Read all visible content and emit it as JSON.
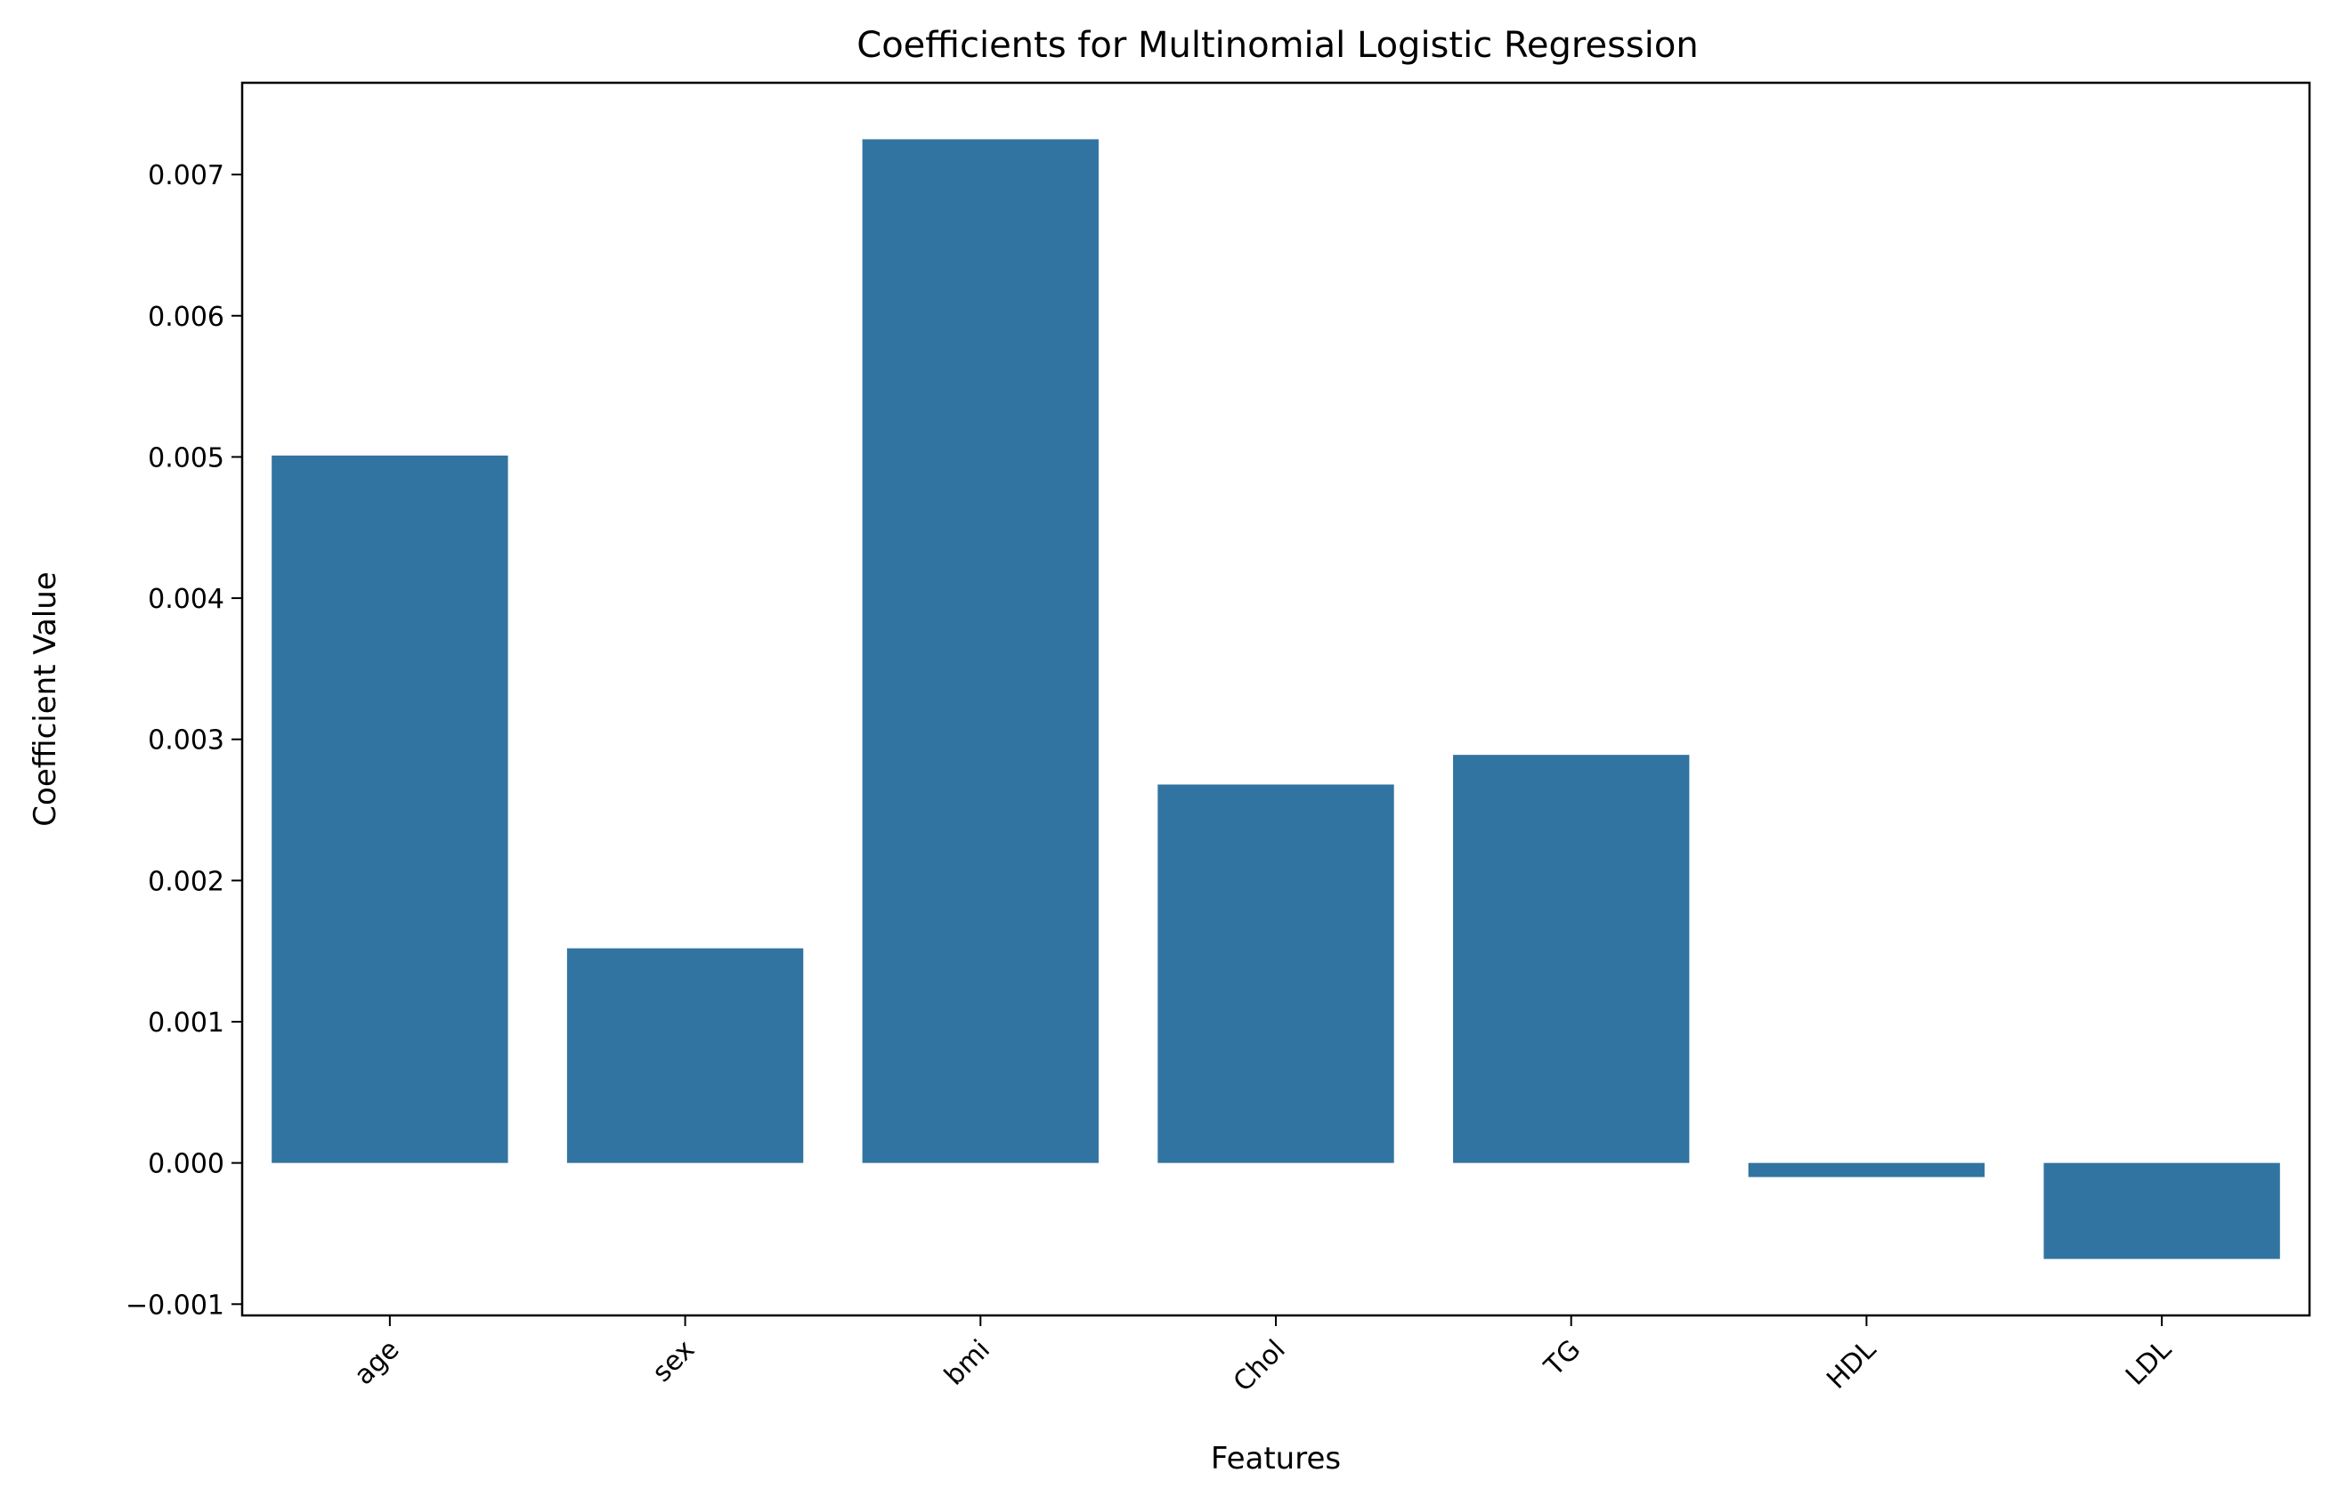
{
  "chart_data": {
    "type": "bar",
    "title": "Coefficients for Multinomial Logistic Regression",
    "xlabel": "Features",
    "ylabel": "Coefficient Value",
    "categories": [
      "age",
      "sex",
      "bmi",
      "Chol",
      "TG",
      "HDL",
      "LDL"
    ],
    "values": [
      0.00501,
      0.00152,
      0.00725,
      0.00268,
      0.00289,
      -0.0001,
      -0.00068
    ],
    "ylim": [
      -0.00108,
      0.00765
    ],
    "yticks": [
      -0.001,
      0.0,
      0.001,
      0.002,
      0.003,
      0.004,
      0.005,
      0.006,
      0.007
    ],
    "ytick_labels": [
      "−0.001",
      "0.000",
      "0.001",
      "0.002",
      "0.003",
      "0.004",
      "0.005",
      "0.006",
      "0.007"
    ],
    "bar_color": "#3274a1",
    "grid": false
  }
}
